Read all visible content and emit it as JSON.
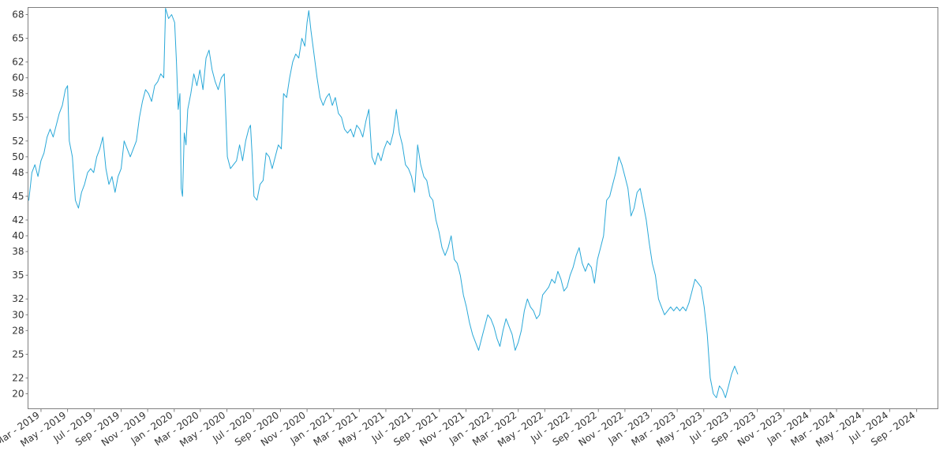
{
  "chart_data": {
    "type": "line",
    "title": "",
    "xlabel": "",
    "ylabel": "",
    "grid": false,
    "legend": "none",
    "ylim": [
      19,
      68.8
    ],
    "xlim": [
      "2019-02-01",
      "2024-10-18"
    ],
    "y_ticks": [
      20,
      22,
      25,
      28,
      30,
      32,
      35,
      38,
      40,
      42,
      45,
      48,
      50,
      52,
      55,
      58,
      60,
      62,
      65,
      68
    ],
    "x_ticks": [
      {
        "date": "2019-03-01",
        "label": "Mar - 2019"
      },
      {
        "date": "2019-05-01",
        "label": "May - 2019"
      },
      {
        "date": "2019-07-01",
        "label": "Jul - 2019"
      },
      {
        "date": "2019-09-01",
        "label": "Sep - 2019"
      },
      {
        "date": "2019-11-01",
        "label": "Nov - 2019"
      },
      {
        "date": "2020-01-01",
        "label": "Jan - 2020"
      },
      {
        "date": "2020-03-01",
        "label": "Mar - 2020"
      },
      {
        "date": "2020-05-01",
        "label": "May - 2020"
      },
      {
        "date": "2020-07-01",
        "label": "Jul - 2020"
      },
      {
        "date": "2020-09-01",
        "label": "Sep - 2020"
      },
      {
        "date": "2020-11-01",
        "label": "Nov - 2020"
      },
      {
        "date": "2021-01-01",
        "label": "Jan - 2021"
      },
      {
        "date": "2021-03-01",
        "label": "Mar - 2021"
      },
      {
        "date": "2021-05-01",
        "label": "May - 2021"
      },
      {
        "date": "2021-07-01",
        "label": "Jul - 2021"
      },
      {
        "date": "2021-09-01",
        "label": "Sep - 2021"
      },
      {
        "date": "2021-11-01",
        "label": "Nov - 2021"
      },
      {
        "date": "2022-01-01",
        "label": "Jan - 2022"
      },
      {
        "date": "2022-03-01",
        "label": "Mar - 2022"
      },
      {
        "date": "2022-05-01",
        "label": "May - 2022"
      },
      {
        "date": "2022-07-01",
        "label": "Jul - 2022"
      },
      {
        "date": "2022-09-01",
        "label": "Sep - 2022"
      },
      {
        "date": "2022-11-01",
        "label": "Nov - 2022"
      },
      {
        "date": "2023-01-01",
        "label": "Jan - 2023"
      },
      {
        "date": "2023-03-01",
        "label": "Mar - 2023"
      },
      {
        "date": "2023-05-01",
        "label": "May - 2023"
      },
      {
        "date": "2023-07-01",
        "label": "Jul - 2023"
      },
      {
        "date": "2023-09-01",
        "label": "Sep - 2023"
      },
      {
        "date": "2023-11-01",
        "label": "Nov - 2023"
      },
      {
        "date": "2024-01-01",
        "label": "Jan - 2024"
      },
      {
        "date": "2024-03-01",
        "label": "Mar - 2024"
      },
      {
        "date": "2024-05-01",
        "label": "May - 2024"
      },
      {
        "date": "2024-07-01",
        "label": "Jul - 2024"
      },
      {
        "date": "2024-09-01",
        "label": "Sep - 2024"
      }
    ],
    "series": [
      {
        "color": "#29a8d8",
        "points": [
          [
            "2019-02-01",
            44.5
          ],
          [
            "2019-02-08",
            48.0
          ],
          [
            "2019-02-15",
            49.0
          ],
          [
            "2019-02-22",
            47.5
          ],
          [
            "2019-03-01",
            49.5
          ],
          [
            "2019-03-08",
            50.5
          ],
          [
            "2019-03-15",
            52.5
          ],
          [
            "2019-03-22",
            53.5
          ],
          [
            "2019-03-29",
            52.5
          ],
          [
            "2019-04-05",
            54.0
          ],
          [
            "2019-04-12",
            55.5
          ],
          [
            "2019-04-19",
            56.5
          ],
          [
            "2019-04-26",
            58.5
          ],
          [
            "2019-05-01",
            59.0
          ],
          [
            "2019-05-05",
            52.0
          ],
          [
            "2019-05-12",
            50.0
          ],
          [
            "2019-05-19",
            44.5
          ],
          [
            "2019-05-26",
            43.5
          ],
          [
            "2019-06-02",
            45.5
          ],
          [
            "2019-06-09",
            46.5
          ],
          [
            "2019-06-16",
            48.0
          ],
          [
            "2019-06-23",
            48.5
          ],
          [
            "2019-06-30",
            48.0
          ],
          [
            "2019-07-07",
            50.0
          ],
          [
            "2019-07-14",
            51.0
          ],
          [
            "2019-07-21",
            52.5
          ],
          [
            "2019-07-28",
            48.5
          ],
          [
            "2019-08-04",
            46.5
          ],
          [
            "2019-08-11",
            47.5
          ],
          [
            "2019-08-18",
            45.5
          ],
          [
            "2019-08-25",
            47.5
          ],
          [
            "2019-09-01",
            48.5
          ],
          [
            "2019-09-08",
            52.0
          ],
          [
            "2019-09-15",
            51.0
          ],
          [
            "2019-09-22",
            50.0
          ],
          [
            "2019-09-29",
            51.0
          ],
          [
            "2019-10-06",
            52.0
          ],
          [
            "2019-10-13",
            55.0
          ],
          [
            "2019-10-20",
            57.0
          ],
          [
            "2019-10-27",
            58.5
          ],
          [
            "2019-11-03",
            58.0
          ],
          [
            "2019-11-10",
            57.0
          ],
          [
            "2019-11-17",
            59.0
          ],
          [
            "2019-11-24",
            59.5
          ],
          [
            "2019-12-01",
            60.5
          ],
          [
            "2019-12-08",
            60.0
          ],
          [
            "2019-12-12",
            68.8
          ],
          [
            "2019-12-19",
            67.5
          ],
          [
            "2019-12-26",
            68.0
          ],
          [
            "2020-01-02",
            67.0
          ],
          [
            "2020-01-06",
            62.0
          ],
          [
            "2020-01-10",
            56.0
          ],
          [
            "2020-01-14",
            58.0
          ],
          [
            "2020-01-17",
            46.0
          ],
          [
            "2020-01-20",
            45.0
          ],
          [
            "2020-01-24",
            53.0
          ],
          [
            "2020-01-28",
            51.5
          ],
          [
            "2020-02-01",
            56.0
          ],
          [
            "2020-02-08",
            58.0
          ],
          [
            "2020-02-15",
            60.5
          ],
          [
            "2020-02-22",
            59.0
          ],
          [
            "2020-02-29",
            61.0
          ],
          [
            "2020-03-07",
            58.5
          ],
          [
            "2020-03-14",
            62.5
          ],
          [
            "2020-03-21",
            63.5
          ],
          [
            "2020-03-28",
            61.0
          ],
          [
            "2020-04-04",
            59.5
          ],
          [
            "2020-04-11",
            58.5
          ],
          [
            "2020-04-18",
            60.0
          ],
          [
            "2020-04-25",
            60.5
          ],
          [
            "2020-05-02",
            50.0
          ],
          [
            "2020-05-09",
            48.5
          ],
          [
            "2020-05-16",
            49.0
          ],
          [
            "2020-05-23",
            49.5
          ],
          [
            "2020-05-30",
            51.5
          ],
          [
            "2020-06-06",
            49.5
          ],
          [
            "2020-06-13",
            52.0
          ],
          [
            "2020-06-20",
            53.5
          ],
          [
            "2020-06-24",
            54.0
          ],
          [
            "2020-06-28",
            50.0
          ],
          [
            "2020-07-02",
            45.0
          ],
          [
            "2020-07-09",
            44.5
          ],
          [
            "2020-07-16",
            46.5
          ],
          [
            "2020-07-23",
            47.0
          ],
          [
            "2020-07-30",
            50.5
          ],
          [
            "2020-08-06",
            50.0
          ],
          [
            "2020-08-13",
            48.5
          ],
          [
            "2020-08-20",
            50.0
          ],
          [
            "2020-08-27",
            51.5
          ],
          [
            "2020-09-03",
            51.0
          ],
          [
            "2020-09-08",
            58.0
          ],
          [
            "2020-09-15",
            57.5
          ],
          [
            "2020-09-22",
            60.0
          ],
          [
            "2020-09-29",
            62.0
          ],
          [
            "2020-10-06",
            63.0
          ],
          [
            "2020-10-13",
            62.5
          ],
          [
            "2020-10-20",
            65.0
          ],
          [
            "2020-10-27",
            64.0
          ],
          [
            "2020-11-01",
            67.0
          ],
          [
            "2020-11-05",
            68.5
          ],
          [
            "2020-11-10",
            66.0
          ],
          [
            "2020-11-17",
            63.0
          ],
          [
            "2020-11-24",
            60.0
          ],
          [
            "2020-12-01",
            57.5
          ],
          [
            "2020-12-08",
            56.5
          ],
          [
            "2020-12-15",
            57.5
          ],
          [
            "2020-12-22",
            58.0
          ],
          [
            "2020-12-29",
            56.5
          ],
          [
            "2021-01-05",
            57.5
          ],
          [
            "2021-01-12",
            55.5
          ],
          [
            "2021-01-19",
            55.0
          ],
          [
            "2021-01-26",
            53.5
          ],
          [
            "2021-02-02",
            53.0
          ],
          [
            "2021-02-09",
            53.5
          ],
          [
            "2021-02-16",
            52.5
          ],
          [
            "2021-02-23",
            54.0
          ],
          [
            "2021-03-02",
            53.5
          ],
          [
            "2021-03-09",
            52.5
          ],
          [
            "2021-03-16",
            54.5
          ],
          [
            "2021-03-23",
            56.0
          ],
          [
            "2021-03-30",
            50.0
          ],
          [
            "2021-04-06",
            49.0
          ],
          [
            "2021-04-13",
            50.5
          ],
          [
            "2021-04-20",
            49.5
          ],
          [
            "2021-04-27",
            51.0
          ],
          [
            "2021-05-04",
            52.0
          ],
          [
            "2021-05-11",
            51.5
          ],
          [
            "2021-05-18",
            53.0
          ],
          [
            "2021-05-25",
            56.0
          ],
          [
            "2021-06-01",
            53.0
          ],
          [
            "2021-06-08",
            51.5
          ],
          [
            "2021-06-15",
            49.0
          ],
          [
            "2021-06-22",
            48.5
          ],
          [
            "2021-06-29",
            47.5
          ],
          [
            "2021-07-06",
            45.5
          ],
          [
            "2021-07-13",
            51.5
          ],
          [
            "2021-07-20",
            49.0
          ],
          [
            "2021-07-27",
            47.5
          ],
          [
            "2021-08-03",
            47.0
          ],
          [
            "2021-08-10",
            45.0
          ],
          [
            "2021-08-17",
            44.5
          ],
          [
            "2021-08-24",
            42.0
          ],
          [
            "2021-08-31",
            40.5
          ],
          [
            "2021-09-07",
            38.5
          ],
          [
            "2021-09-14",
            37.5
          ],
          [
            "2021-09-21",
            38.5
          ],
          [
            "2021-09-28",
            40.0
          ],
          [
            "2021-10-05",
            37.0
          ],
          [
            "2021-10-12",
            36.5
          ],
          [
            "2021-10-19",
            35.0
          ],
          [
            "2021-10-26",
            32.5
          ],
          [
            "2021-11-02",
            31.0
          ],
          [
            "2021-11-09",
            29.0
          ],
          [
            "2021-11-16",
            27.5
          ],
          [
            "2021-11-23",
            26.5
          ],
          [
            "2021-11-30",
            25.5
          ],
          [
            "2021-12-07",
            27.0
          ],
          [
            "2021-12-14",
            28.5
          ],
          [
            "2021-12-21",
            30.0
          ],
          [
            "2021-12-28",
            29.5
          ],
          [
            "2022-01-04",
            28.5
          ],
          [
            "2022-01-11",
            27.0
          ],
          [
            "2022-01-18",
            26.0
          ],
          [
            "2022-01-25",
            28.0
          ],
          [
            "2022-02-01",
            29.5
          ],
          [
            "2022-02-08",
            28.5
          ],
          [
            "2022-02-15",
            27.5
          ],
          [
            "2022-02-22",
            25.5
          ],
          [
            "2022-03-01",
            26.5
          ],
          [
            "2022-03-08",
            28.0
          ],
          [
            "2022-03-15",
            30.5
          ],
          [
            "2022-03-22",
            32.0
          ],
          [
            "2022-03-29",
            31.0
          ],
          [
            "2022-04-05",
            30.5
          ],
          [
            "2022-04-12",
            29.5
          ],
          [
            "2022-04-19",
            30.0
          ],
          [
            "2022-04-26",
            32.5
          ],
          [
            "2022-05-03",
            33.0
          ],
          [
            "2022-05-10",
            33.5
          ],
          [
            "2022-05-17",
            34.5
          ],
          [
            "2022-05-24",
            34.0
          ],
          [
            "2022-05-31",
            35.5
          ],
          [
            "2022-06-07",
            34.5
          ],
          [
            "2022-06-14",
            33.0
          ],
          [
            "2022-06-21",
            33.5
          ],
          [
            "2022-06-28",
            35.0
          ],
          [
            "2022-07-05",
            36.0
          ],
          [
            "2022-07-12",
            37.5
          ],
          [
            "2022-07-19",
            38.5
          ],
          [
            "2022-07-26",
            36.5
          ],
          [
            "2022-08-02",
            35.5
          ],
          [
            "2022-08-09",
            36.5
          ],
          [
            "2022-08-16",
            36.0
          ],
          [
            "2022-08-23",
            34.0
          ],
          [
            "2022-08-30",
            37.0
          ],
          [
            "2022-09-06",
            38.5
          ],
          [
            "2022-09-13",
            40.0
          ],
          [
            "2022-09-20",
            44.5
          ],
          [
            "2022-09-27",
            45.0
          ],
          [
            "2022-10-04",
            46.5
          ],
          [
            "2022-10-11",
            48.0
          ],
          [
            "2022-10-18",
            50.0
          ],
          [
            "2022-10-25",
            49.0
          ],
          [
            "2022-11-01",
            47.5
          ],
          [
            "2022-11-08",
            46.0
          ],
          [
            "2022-11-15",
            42.5
          ],
          [
            "2022-11-22",
            43.5
          ],
          [
            "2022-11-29",
            45.5
          ],
          [
            "2022-12-06",
            46.0
          ],
          [
            "2022-12-13",
            44.0
          ],
          [
            "2022-12-20",
            42.0
          ],
          [
            "2022-12-27",
            39.0
          ],
          [
            "2023-01-03",
            36.5
          ],
          [
            "2023-01-10",
            35.0
          ],
          [
            "2023-01-17",
            32.0
          ],
          [
            "2023-01-24",
            31.0
          ],
          [
            "2023-01-31",
            30.0
          ],
          [
            "2023-02-07",
            30.5
          ],
          [
            "2023-02-14",
            31.0
          ],
          [
            "2023-02-21",
            30.5
          ],
          [
            "2023-02-28",
            31.0
          ],
          [
            "2023-03-07",
            30.5
          ],
          [
            "2023-03-14",
            31.0
          ],
          [
            "2023-03-21",
            30.5
          ],
          [
            "2023-03-28",
            31.5
          ],
          [
            "2023-04-04",
            33.0
          ],
          [
            "2023-04-11",
            34.5
          ],
          [
            "2023-04-18",
            34.0
          ],
          [
            "2023-04-25",
            33.5
          ],
          [
            "2023-05-02",
            31.0
          ],
          [
            "2023-05-09",
            27.5
          ],
          [
            "2023-05-16",
            22.0
          ],
          [
            "2023-05-23",
            20.0
          ],
          [
            "2023-05-30",
            19.5
          ],
          [
            "2023-06-06",
            21.0
          ],
          [
            "2023-06-13",
            20.5
          ],
          [
            "2023-06-20",
            19.5
          ],
          [
            "2023-06-27",
            21.0
          ],
          [
            "2023-07-04",
            22.5
          ],
          [
            "2023-07-11",
            23.5
          ],
          [
            "2023-07-18",
            22.5
          ]
        ]
      }
    ]
  }
}
